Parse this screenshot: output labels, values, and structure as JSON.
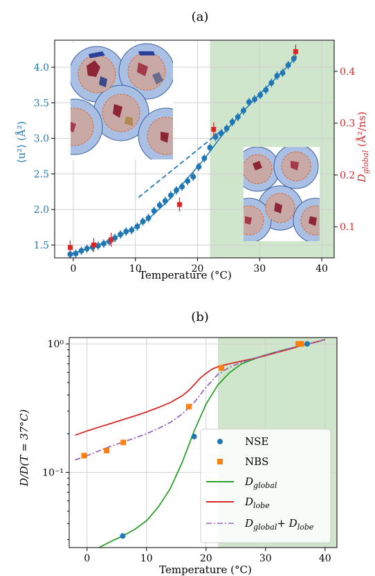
{
  "chart_data": [
    {
      "panel": "(a)",
      "type": "scatter",
      "xlabel": "Temperature (°C)",
      "xlim": [
        -3,
        42
      ],
      "xticks": [
        0,
        10,
        20,
        30,
        40
      ],
      "ylabel_left": "⟨u²⟩ (Å²)",
      "ylim_left": [
        1.32,
        4.38
      ],
      "yticks_left": [
        1.5,
        2.0,
        2.5,
        3.0,
        3.5,
        4.0
      ],
      "ylabel_right": "D_global (Å²/ns)",
      "ylim_right": [
        0.04,
        0.46
      ],
      "yticks_right": [
        0.1,
        0.2,
        0.3,
        0.4
      ],
      "shaded_region_x": [
        22,
        42
      ],
      "shaded_color": "#cfe6cc",
      "grid": true,
      "series": [
        {
          "axis": "left",
          "color": "#1f77b4",
          "marker": "circle",
          "x": [
            -0.5,
            0.4,
            1.3,
            2.2,
            3.1,
            4.0,
            4.9,
            5.8,
            6.7,
            7.6,
            8.5,
            9.4,
            10.3,
            11.2,
            12.1,
            13.0,
            13.9,
            14.8,
            15.7,
            16.6,
            17.5,
            18.4,
            19.3,
            20.2,
            21.1,
            22.0,
            22.9,
            23.8,
            24.7,
            25.6,
            26.5,
            27.4,
            28.3,
            29.2,
            30.1,
            31.0,
            31.9,
            32.8,
            33.7,
            34.6,
            35.5
          ],
          "y": [
            1.37,
            1.38,
            1.42,
            1.45,
            1.47,
            1.49,
            1.52,
            1.55,
            1.6,
            1.65,
            1.69,
            1.71,
            1.76,
            1.83,
            1.88,
            1.98,
            2.06,
            2.12,
            2.2,
            2.27,
            2.32,
            2.4,
            2.46,
            2.6,
            2.72,
            2.87,
            3.02,
            3.07,
            3.14,
            3.23,
            3.3,
            3.39,
            3.51,
            3.55,
            3.61,
            3.68,
            3.78,
            3.88,
            3.92,
            4.03,
            4.12
          ]
        },
        {
          "axis": "right",
          "color": "#d62728",
          "marker": "square",
          "x": [
            -0.5,
            3.3,
            6.1,
            17.1,
            22.6,
            35.8
          ],
          "y": [
            0.06,
            0.065,
            0.075,
            0.143,
            0.288,
            0.438
          ]
        }
      ],
      "fit_solid_left": {
        "x": [
          -0.5,
          3,
          6,
          9,
          12,
          15,
          18,
          21,
          24,
          27,
          30,
          33,
          36
        ],
        "y": [
          1.37,
          1.47,
          1.57,
          1.7,
          1.86,
          2.1,
          2.4,
          2.7,
          3.05,
          3.35,
          3.62,
          3.88,
          4.15
        ]
      },
      "fit_dashed_left": {
        "x": [
          10.5,
          24
        ],
        "y": [
          2.17,
          3.12
        ]
      }
    },
    {
      "panel": "(b)",
      "type": "line",
      "xlabel": "Temperature (°C)",
      "ylabel": "D/D(T = 37°C)",
      "xlim": [
        -3,
        42
      ],
      "xticks": [
        0,
        10,
        20,
        30,
        40
      ],
      "yscale": "log",
      "ylim": [
        0.026,
        1.12
      ],
      "yticks": [
        0.1,
        1.0
      ],
      "ytick_labels": [
        "10⁻¹",
        "10⁰"
      ],
      "shaded_region_x": [
        22,
        42
      ],
      "grid": true,
      "legend": "lower-right",
      "series": [
        {
          "name": "NSE",
          "kind": "scatter",
          "color": "#1f77b4",
          "marker": "circle",
          "x": [
            6,
            18,
            37
          ],
          "y": [
            0.032,
            0.19,
            1.0
          ]
        },
        {
          "name": "NBS",
          "kind": "scatter",
          "color": "#ff7f0e",
          "marker": "square",
          "x": [
            -0.5,
            3.3,
            6.1,
            17.1,
            22.6,
            35.5,
            36
          ],
          "y": [
            0.135,
            0.148,
            0.171,
            0.325,
            0.65,
            1.0,
            1.0
          ]
        },
        {
          "name": "D_global",
          "kind": "line",
          "color": "#2ca02c",
          "style": "solid",
          "x": [
            2,
            4,
            6,
            8,
            10,
            12,
            14,
            16,
            18,
            20,
            22,
            24,
            26,
            28,
            30,
            32,
            34,
            36,
            38,
            40
          ],
          "y": [
            0.026,
            0.029,
            0.032,
            0.036,
            0.042,
            0.054,
            0.075,
            0.12,
            0.21,
            0.34,
            0.48,
            0.6,
            0.7,
            0.76,
            0.82,
            0.87,
            0.92,
            0.97,
            1.02,
            1.08
          ]
        },
        {
          "name": "D_lobe",
          "kind": "line",
          "color": "#d62728",
          "style": "solid",
          "x": [
            -2,
            0,
            2,
            4,
            6,
            8,
            10,
            12,
            14,
            16,
            17,
            18,
            19,
            20,
            21,
            22,
            23,
            24,
            26,
            28,
            30,
            32,
            34,
            36,
            38,
            40
          ],
          "y": [
            0.195,
            0.21,
            0.225,
            0.24,
            0.257,
            0.275,
            0.295,
            0.32,
            0.35,
            0.395,
            0.43,
            0.48,
            0.54,
            0.59,
            0.635,
            0.665,
            0.685,
            0.7,
            0.735,
            0.77,
            0.81,
            0.86,
            0.91,
            0.97,
            1.02,
            1.08
          ]
        },
        {
          "name": "D_global + D_lobe",
          "kind": "line",
          "color": "#9467bd",
          "style": "dashdot",
          "x": [
            -2,
            0,
            2,
            4,
            6,
            8,
            10,
            12,
            14,
            16,
            18,
            20,
            22,
            24,
            26,
            28,
            30,
            32,
            34,
            36,
            38,
            40
          ],
          "y": [
            0.125,
            0.135,
            0.147,
            0.16,
            0.172,
            0.185,
            0.2,
            0.22,
            0.245,
            0.285,
            0.35,
            0.46,
            0.58,
            0.66,
            0.72,
            0.77,
            0.82,
            0.87,
            0.92,
            0.97,
            1.02,
            1.08
          ]
        }
      ]
    }
  ],
  "legend_items": [
    {
      "key": "nse",
      "label": "NSE"
    },
    {
      "key": "nbs",
      "label": "NBS"
    },
    {
      "key": "dglobal",
      "label": "D",
      "sub": "global"
    },
    {
      "key": "dlobe",
      "label": "D",
      "sub": "lobe"
    },
    {
      "key": "dsum",
      "label": "D",
      "sub": "global",
      "plus": "+ D",
      "sub2": "lobe"
    }
  ],
  "panel_a_label": "(a)",
  "panel_b_label": "(b)",
  "a_xlabel": "Temperature (°C)",
  "b_xlabel": "Temperature (°C)",
  "a_ylabel_left": "⟨u²⟩ (Å²)",
  "a_ylabel_right_main": "D",
  "a_ylabel_right_sub": "global",
  "a_ylabel_right_unit": " (Å²/ns)",
  "b_ylabel": "D/D(T = 37°C)",
  "colors": {
    "blue": "#1f77b4",
    "red": "#d62728",
    "orange": "#ff7f0e",
    "green": "#2ca02c",
    "purple": "#9467bd",
    "shade": "#cfe6cc"
  }
}
